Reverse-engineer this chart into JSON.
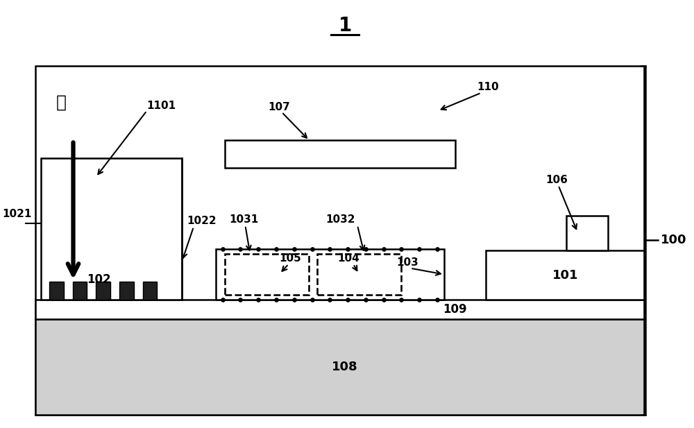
{
  "bg_color": "#ffffff",
  "fig_width": 10.0,
  "fig_height": 6.17,
  "title": "1",
  "labels": {
    "guang": "光",
    "1101": "1101",
    "1021": "1021",
    "1022": "1022",
    "102": "102",
    "107": "107",
    "110": "110",
    "106": "106",
    "1031": "1031",
    "1032": "1032",
    "103": "103",
    "104": "104",
    "105": "105",
    "101": "101",
    "109": "109",
    "108": "108",
    "100": "100"
  }
}
